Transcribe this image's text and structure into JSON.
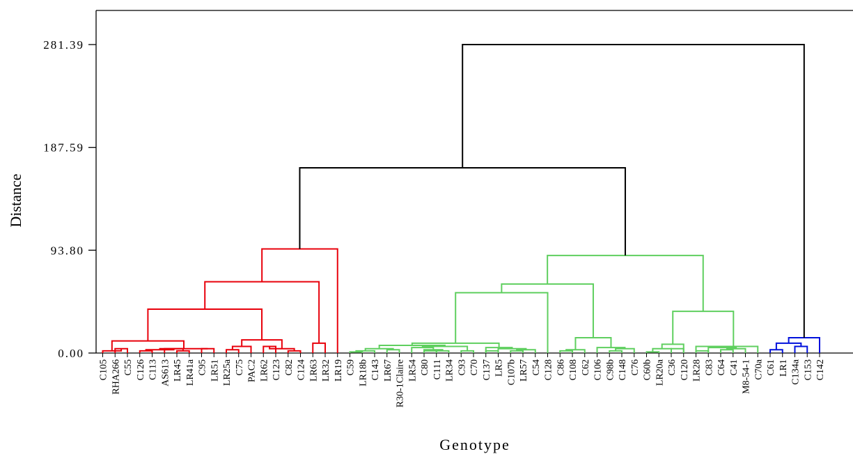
{
  "chart_data": {
    "type": "dendrogram",
    "xlabel": "Genotype",
    "ylabel": "Distance",
    "ylim": [
      0,
      281.39
    ],
    "yticks": [
      "0.00",
      "93.80",
      "187.59",
      "281.39"
    ],
    "colors": {
      "cluster1": "#e8000b",
      "cluster2": "#5fcf5f",
      "cluster3": "#0010dc",
      "upper": "#000000"
    },
    "leaves": [
      {
        "label": "C105",
        "cluster": "cluster1"
      },
      {
        "label": "RHA266",
        "cluster": "cluster1"
      },
      {
        "label": "C55",
        "cluster": "cluster1"
      },
      {
        "label": "C126",
        "cluster": "cluster1"
      },
      {
        "label": "C113",
        "cluster": "cluster1"
      },
      {
        "label": "AS613",
        "cluster": "cluster1"
      },
      {
        "label": "LR45",
        "cluster": "cluster1"
      },
      {
        "label": "LR41a",
        "cluster": "cluster1"
      },
      {
        "label": "C95",
        "cluster": "cluster1"
      },
      {
        "label": "LR51",
        "cluster": "cluster1"
      },
      {
        "label": "LR25a",
        "cluster": "cluster1"
      },
      {
        "label": "C75",
        "cluster": "cluster1"
      },
      {
        "label": "PAC2",
        "cluster": "cluster1"
      },
      {
        "label": "LR62",
        "cluster": "cluster1"
      },
      {
        "label": "C123",
        "cluster": "cluster1"
      },
      {
        "label": "C82",
        "cluster": "cluster1"
      },
      {
        "label": "C124",
        "cluster": "cluster1"
      },
      {
        "label": "LR63",
        "cluster": "cluster1"
      },
      {
        "label": "LR32",
        "cluster": "cluster1"
      },
      {
        "label": "LR19",
        "cluster": "cluster1"
      },
      {
        "label": "C59",
        "cluster": "cluster2"
      },
      {
        "label": "LR18b",
        "cluster": "cluster2"
      },
      {
        "label": "C143",
        "cluster": "cluster2"
      },
      {
        "label": "LR67",
        "cluster": "cluster2"
      },
      {
        "label": "R30-1Claire",
        "cluster": "cluster2"
      },
      {
        "label": "LR54",
        "cluster": "cluster2"
      },
      {
        "label": "C80",
        "cluster": "cluster2"
      },
      {
        "label": "C111",
        "cluster": "cluster2"
      },
      {
        "label": "LR34",
        "cluster": "cluster2"
      },
      {
        "label": "C93",
        "cluster": "cluster2"
      },
      {
        "label": "C70",
        "cluster": "cluster2"
      },
      {
        "label": "C137",
        "cluster": "cluster2"
      },
      {
        "label": "LR5",
        "cluster": "cluster2"
      },
      {
        "label": "C107b",
        "cluster": "cluster2"
      },
      {
        "label": "LR57",
        "cluster": "cluster2"
      },
      {
        "label": "C54",
        "cluster": "cluster2"
      },
      {
        "label": "C128",
        "cluster": "cluster2"
      },
      {
        "label": "C86",
        "cluster": "cluster2"
      },
      {
        "label": "C108",
        "cluster": "cluster2"
      },
      {
        "label": "C62",
        "cluster": "cluster2"
      },
      {
        "label": "C106",
        "cluster": "cluster2"
      },
      {
        "label": "C98b",
        "cluster": "cluster2"
      },
      {
        "label": "C148",
        "cluster": "cluster2"
      },
      {
        "label": "C76",
        "cluster": "cluster2"
      },
      {
        "label": "C60b",
        "cluster": "cluster2"
      },
      {
        "label": "LR20a",
        "cluster": "cluster2"
      },
      {
        "label": "C36",
        "cluster": "cluster2"
      },
      {
        "label": "C120",
        "cluster": "cluster2"
      },
      {
        "label": "LR28",
        "cluster": "cluster2"
      },
      {
        "label": "C83",
        "cluster": "cluster2"
      },
      {
        "label": "C64",
        "cluster": "cluster2"
      },
      {
        "label": "C41",
        "cluster": "cluster2"
      },
      {
        "label": "M8-54-1",
        "cluster": "cluster2"
      },
      {
        "label": "C70a",
        "cluster": "cluster2"
      },
      {
        "label": "C61",
        "cluster": "cluster3"
      },
      {
        "label": "LR1",
        "cluster": "cluster3"
      },
      {
        "label": "C134a",
        "cluster": "cluster3"
      },
      {
        "label": "C153",
        "cluster": "cluster3"
      },
      {
        "label": "C142",
        "cluster": "cluster3"
      }
    ],
    "merges": [
      {
        "l": 1,
        "r": 2,
        "h": 4,
        "cluster": "cluster1"
      },
      {
        "l": 0,
        "r": "1-2",
        "h": 2,
        "cluster": "cluster1"
      },
      {
        "l": 3,
        "r": 4,
        "h": 2,
        "cluster": "cluster1"
      },
      {
        "l": 6,
        "r": 7,
        "h": 2,
        "cluster": "cluster1"
      },
      {
        "l": 5,
        "r": "6-7",
        "h": 4,
        "cluster": "cluster1"
      },
      {
        "l": "3-4",
        "r": "5-7",
        "h": 3,
        "cluster": "cluster1"
      },
      {
        "l": 8,
        "r": 9,
        "h": 4,
        "cluster": "cluster1"
      },
      {
        "l": "3-7",
        "r": "8-9",
        "h": 4,
        "cluster": "cluster1"
      },
      {
        "l": "0-2",
        "r": "3-9",
        "h": 11,
        "cluster": "cluster1"
      },
      {
        "l": 10,
        "r": 11,
        "h": 3,
        "cluster": "cluster1"
      },
      {
        "l": "10-11",
        "r": 12,
        "h": 6,
        "cluster": "cluster1"
      },
      {
        "l": 13,
        "r": 14,
        "h": 6,
        "cluster": "cluster1"
      },
      {
        "l": 15,
        "r": 16,
        "h": 2,
        "cluster": "cluster1"
      },
      {
        "l": "13-14",
        "r": "15-16",
        "h": 4,
        "cluster": "cluster1"
      },
      {
        "l": "10-12",
        "r": "13-16",
        "h": 12,
        "cluster": "cluster1"
      },
      {
        "l": "0-9",
        "r": "10-16",
        "h": 40,
        "cluster": "cluster1"
      },
      {
        "l": 17,
        "r": 18,
        "h": 9,
        "cluster": "cluster1"
      },
      {
        "l": "0-16",
        "r": "17-18",
        "h": 65,
        "cluster": "cluster1"
      },
      {
        "l": "0-18",
        "r": 19,
        "h": 95,
        "cluster": "cluster1"
      },
      {
        "l": "0-19",
        "r": "20-58",
        "h": 169,
        "cluster": "upper"
      },
      {
        "l": "0-58",
        "r": "54-58",
        "h": 281.39,
        "cluster": "upper"
      }
    ]
  }
}
